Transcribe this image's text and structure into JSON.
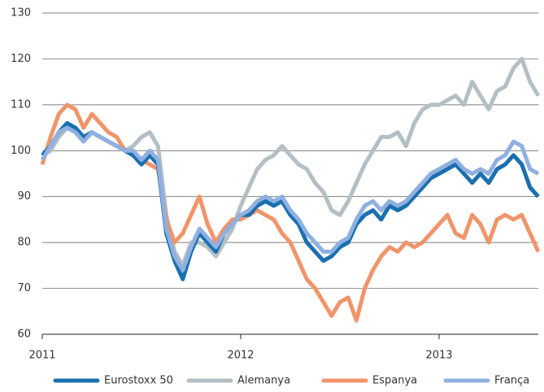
{
  "chart_data": {
    "type": "line",
    "x": [
      2011,
      2011.042,
      2011.083,
      2011.125,
      2011.167,
      2011.208,
      2011.25,
      2011.292,
      2011.333,
      2011.375,
      2011.417,
      2011.458,
      2011.5,
      2011.542,
      2011.583,
      2011.625,
      2011.667,
      2011.708,
      2011.75,
      2011.792,
      2011.833,
      2011.875,
      2011.917,
      2011.958,
      2012,
      2012.042,
      2012.083,
      2012.125,
      2012.167,
      2012.208,
      2012.25,
      2012.292,
      2012.333,
      2012.375,
      2012.417,
      2012.458,
      2012.5,
      2012.542,
      2012.583,
      2012.625,
      2012.667,
      2012.708,
      2012.75,
      2012.792,
      2012.833,
      2012.875,
      2012.917,
      2012.958,
      2013,
      2013.042,
      2013.083,
      2013.125,
      2013.167,
      2013.208,
      2013.25,
      2013.292,
      2013.333,
      2013.375,
      2013.417,
      2013.458,
      2013.5
    ],
    "series": [
      {
        "name": "Alemanya",
        "color": "#b3bfc4",
        "values": [
          99,
          100,
          103,
          105,
          104,
          102,
          104,
          103,
          102,
          101,
          100,
          101,
          103,
          104,
          101,
          86,
          78,
          75,
          80,
          80,
          79,
          77,
          80,
          83,
          88,
          92,
          96,
          98,
          99,
          101,
          99,
          97,
          96,
          93,
          91,
          87,
          86,
          89,
          93,
          97,
          100,
          103,
          103,
          104,
          101,
          106,
          109,
          110,
          110,
          111,
          112,
          110,
          115,
          112,
          109,
          113,
          114,
          118,
          120,
          115,
          112
        ]
      },
      {
        "name": "Espanya",
        "color": "#f0956a",
        "values": [
          97,
          103,
          108,
          110,
          109,
          105,
          108,
          106,
          104,
          103,
          100,
          99,
          98,
          97,
          96,
          85,
          80,
          82,
          86,
          90,
          84,
          80,
          83,
          85,
          85,
          86,
          87,
          86,
          85,
          82,
          80,
          76,
          72,
          70,
          67,
          64,
          67,
          68,
          63,
          70,
          74,
          77,
          79,
          78,
          80,
          79,
          80,
          82,
          84,
          86,
          82,
          81,
          86,
          84,
          80,
          85,
          86,
          85,
          86,
          82,
          78
        ]
      },
      {
        "name": "Eurostoxx 50",
        "color": "#1a6fb0",
        "values": [
          99,
          101,
          104,
          106,
          105,
          103,
          104,
          103,
          102,
          101,
          100,
          99,
          97,
          99,
          97,
          82,
          76,
          72,
          78,
          82,
          80,
          78,
          82,
          84,
          86,
          86,
          88,
          89,
          88,
          89,
          86,
          84,
          80,
          78,
          76,
          77,
          79,
          80,
          84,
          86,
          87,
          85,
          88,
          87,
          88,
          90,
          92,
          94,
          95,
          96,
          97,
          95,
          93,
          95,
          93,
          96,
          97,
          99,
          97,
          92,
          90
        ]
      },
      {
        "name": "França",
        "color": "#8fb0e0",
        "values": [
          98,
          101,
          104,
          105,
          104,
          102,
          104,
          103,
          102,
          101,
          100,
          100,
          98,
          100,
          98,
          83,
          77,
          74,
          79,
          83,
          81,
          79,
          82,
          84,
          86,
          87,
          89,
          90,
          89,
          90,
          87,
          85,
          82,
          80,
          78,
          78,
          80,
          81,
          85,
          88,
          89,
          87,
          89,
          88,
          89,
          91,
          93,
          95,
          96,
          97,
          98,
          96,
          95,
          96,
          95,
          98,
          99,
          102,
          101,
          96,
          95
        ]
      }
    ],
    "legend_order": [
      "Eurostoxx 50",
      "Alemanya",
      "Espanya",
      "França"
    ],
    "xlim": [
      2011,
      2013.5
    ],
    "xticks": [
      2011,
      2012,
      2013
    ],
    "ylim": [
      60,
      130
    ],
    "yticks": [
      60,
      70,
      80,
      90,
      100,
      110,
      120,
      130
    ],
    "grid": true,
    "legend": "bottom"
  }
}
